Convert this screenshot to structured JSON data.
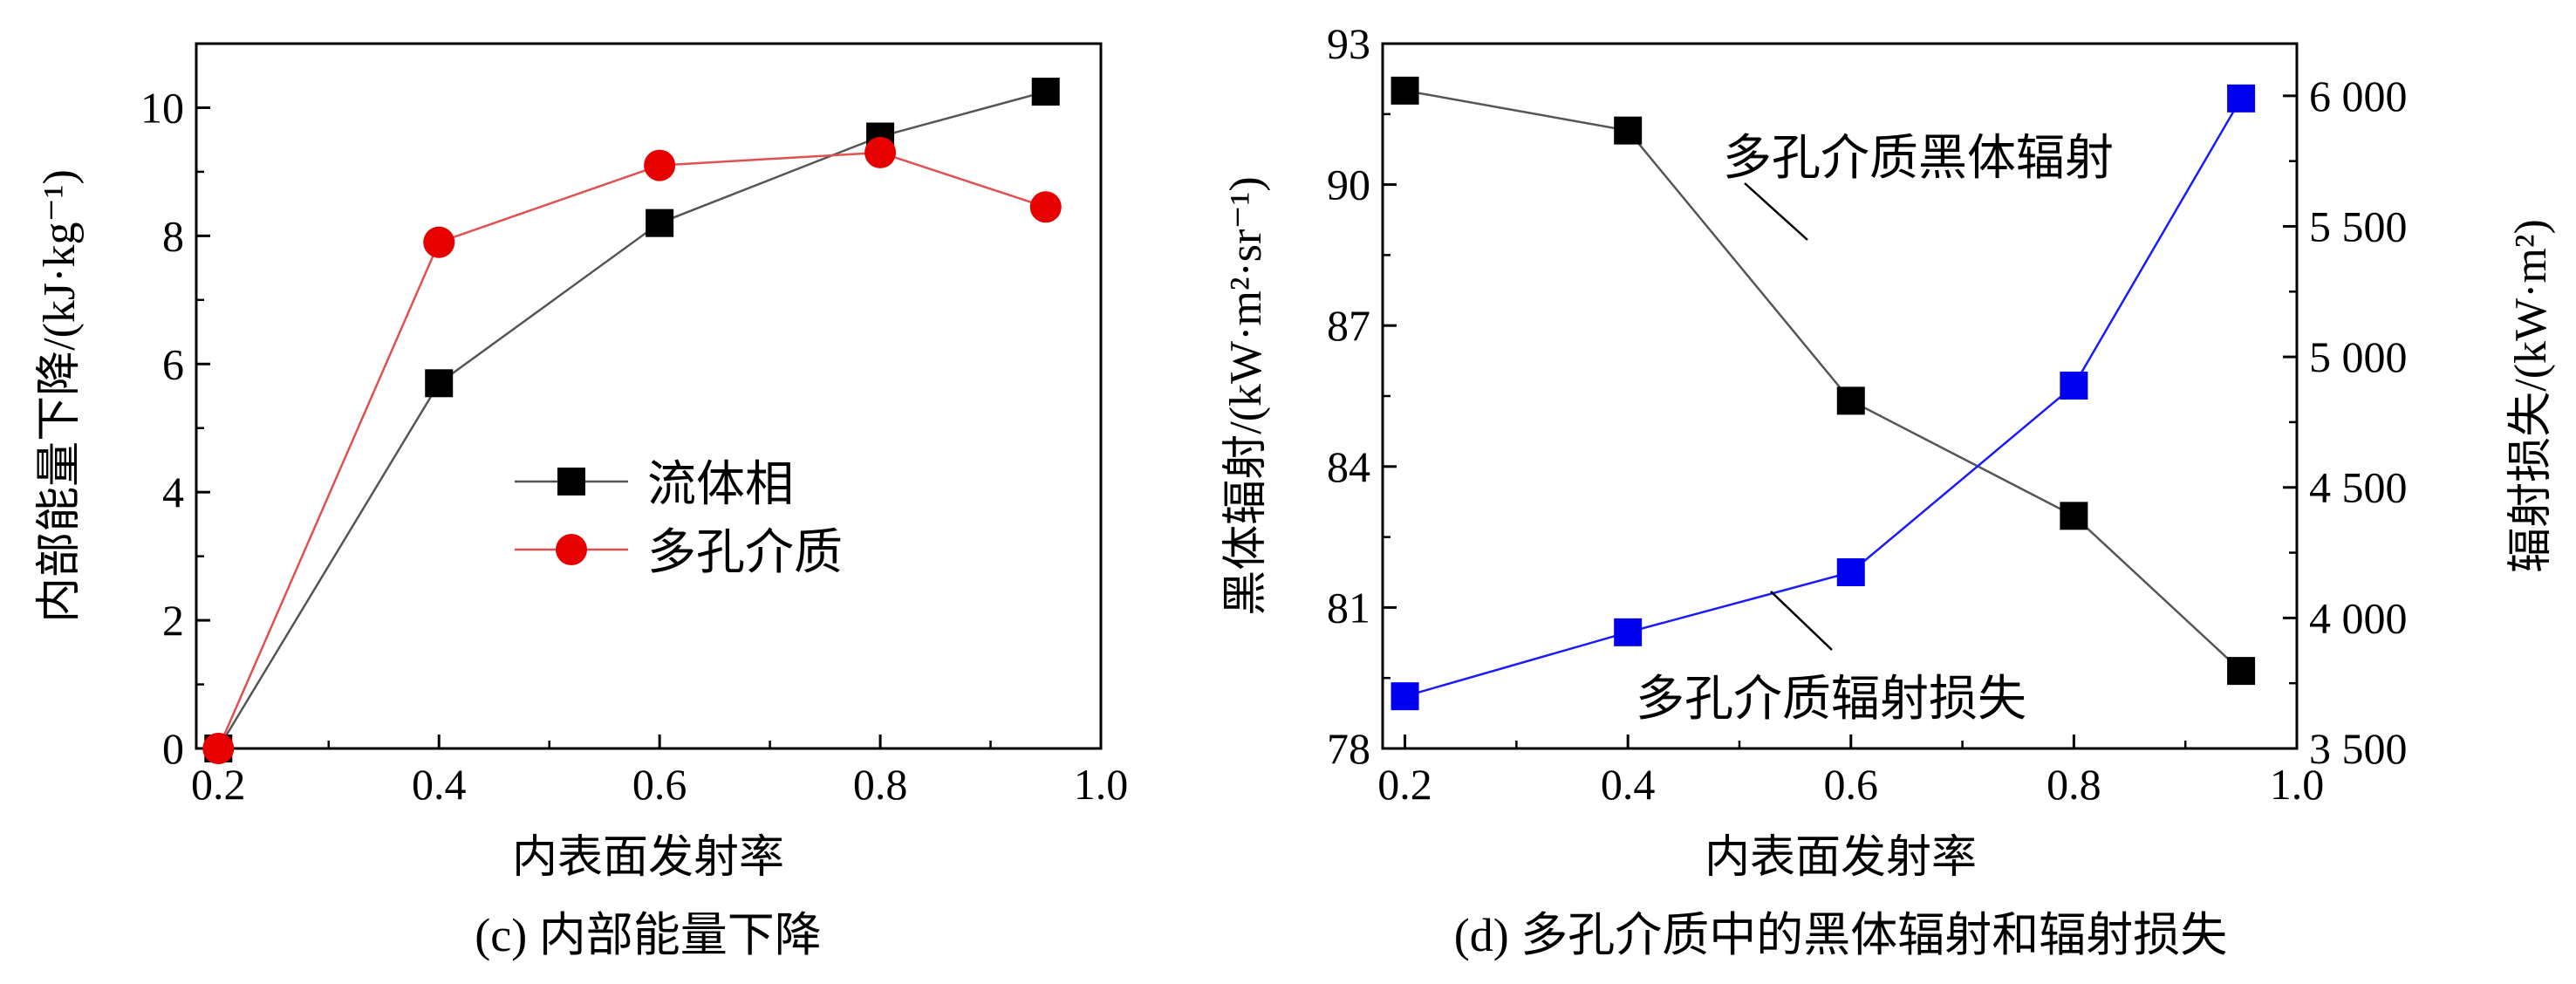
{
  "chart_data": [
    {
      "type": "line",
      "caption": "(c) 内部能量下降",
      "xlabel": "内表面发射率",
      "ylabel": "内部能量下降/(kJ·kg⁻¹)",
      "xlim": [
        0.18,
        1.0
      ],
      "ylim": [
        0,
        11
      ],
      "xticks": [
        0.2,
        0.4,
        0.6,
        0.8,
        1.0
      ],
      "xtick_labels": [
        "0.2",
        "0.4",
        "0.6",
        "0.8",
        "1.0"
      ],
      "yticks": [
        0,
        2,
        4,
        6,
        8,
        10
      ],
      "ytick_labels": [
        "0",
        "2",
        "4",
        "6",
        "8",
        "10"
      ],
      "legend_position": "center-right",
      "series": [
        {
          "name": "流体相",
          "marker": "square",
          "color": "#000000",
          "line_color": "#555555",
          "x": [
            0.2,
            0.4,
            0.6,
            0.8,
            0.95
          ],
          "y": [
            0,
            5.7,
            8.2,
            9.55,
            10.25
          ]
        },
        {
          "name": "多孔介质",
          "marker": "circle",
          "color": "#e60000",
          "line_color": "#e05050",
          "x": [
            0.2,
            0.4,
            0.6,
            0.8,
            0.95
          ],
          "y": [
            0,
            7.9,
            9.1,
            9.3,
            8.45
          ]
        }
      ]
    },
    {
      "type": "line",
      "caption": "(d) 多孔介质中的黑体辐射和辐射损失",
      "xlabel": "内表面发射率",
      "ylabel_left": "黑体辐射/(kW·m²·sr⁻¹)",
      "ylabel_right": "辐射损失/(kW·m²)",
      "xlim": [
        0.18,
        1.0
      ],
      "ylim_left": [
        78,
        93
      ],
      "ylim_right": [
        3500,
        6200
      ],
      "xticks": [
        0.2,
        0.4,
        0.6,
        0.8,
        1.0
      ],
      "xtick_labels": [
        "0.2",
        "0.4",
        "0.6",
        "0.8",
        "1.0"
      ],
      "yticks_left": [
        78,
        81,
        84,
        87,
        90,
        93
      ],
      "ytick_labels_left": [
        "78",
        "81",
        "84",
        "87",
        "90",
        "93"
      ],
      "yticks_right": [
        3500,
        4000,
        4500,
        5000,
        5500,
        6000
      ],
      "ytick_labels_right": [
        "3 500",
        "4 000",
        "4 500",
        "5 000",
        "5 500",
        "6 000"
      ],
      "series": [
        {
          "name": "多孔介质黑体辐射",
          "axis": "left",
          "marker": "square",
          "color": "#000000",
          "line_color": "#555555",
          "x": [
            0.2,
            0.4,
            0.6,
            0.8,
            0.95
          ],
          "y": [
            92.0,
            91.15,
            85.4,
            82.95,
            79.65
          ]
        },
        {
          "name": "多孔介质辐射损失",
          "axis": "right",
          "marker": "square",
          "color": "#0000ee",
          "line_color": "#1a1aff",
          "x": [
            0.2,
            0.4,
            0.6,
            0.8,
            0.95
          ],
          "y": [
            3700,
            3945,
            4175,
            4890,
            5990
          ]
        }
      ],
      "annotations": [
        "多孔介质黑体辐射",
        "多孔介质辐射损失"
      ]
    }
  ]
}
